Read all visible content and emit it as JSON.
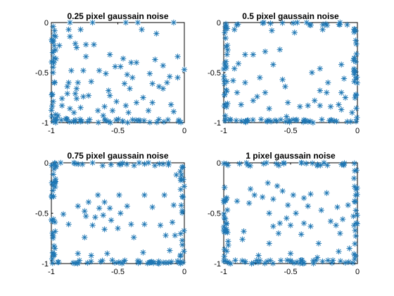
{
  "marker_color": "#1f77b4",
  "chart_data": [
    {
      "type": "scatter",
      "title": "0.25 pixel gaussain noise",
      "xlim": [
        -1,
        0
      ],
      "ylim": [
        -1,
        0
      ],
      "xticks": [
        -1,
        -0.5,
        0
      ],
      "yticks": [
        -1,
        -0.5,
        0
      ],
      "xtick_labels": [
        "-1",
        "-0.5",
        "0"
      ],
      "ytick_labels": [
        "-1",
        "-0.5",
        "0"
      ],
      "grid": false,
      "points": [
        [
          -0.86,
          0.0
        ],
        [
          -0.69,
          0.0
        ],
        [
          -0.44,
          0.0
        ],
        [
          -0.35,
          0.0
        ],
        [
          -0.08,
          0.0
        ],
        [
          -0.87,
          -0.07
        ],
        [
          -0.78,
          -0.07
        ],
        [
          -0.32,
          -0.07
        ],
        [
          -0.21,
          -0.11
        ],
        [
          -0.98,
          -0.13
        ],
        [
          -0.86,
          -0.14
        ],
        [
          -0.82,
          -0.21
        ],
        [
          -0.94,
          -0.23
        ],
        [
          -0.81,
          -0.25
        ],
        [
          -0.74,
          -0.22
        ],
        [
          -0.68,
          -0.22
        ],
        [
          -0.56,
          -0.32
        ],
        [
          -0.46,
          -0.36
        ],
        [
          -0.4,
          -0.4
        ],
        [
          -0.52,
          -0.44
        ],
        [
          -0.74,
          -0.34
        ],
        [
          -0.36,
          -0.4
        ],
        [
          -0.22,
          -0.37
        ],
        [
          -0.98,
          -0.4
        ],
        [
          -0.48,
          -0.44
        ],
        [
          -0.26,
          -0.51
        ],
        [
          -0.16,
          -0.43
        ],
        [
          -0.05,
          -0.34
        ],
        [
          0.0,
          -0.47
        ],
        [
          -0.85,
          -0.48
        ],
        [
          -0.76,
          -0.48
        ],
        [
          -0.64,
          -0.48
        ],
        [
          -0.59,
          -0.51
        ],
        [
          -0.43,
          -0.52
        ],
        [
          -0.39,
          -0.55
        ],
        [
          -0.87,
          -0.6
        ],
        [
          -0.88,
          -0.64
        ],
        [
          -0.8,
          -0.6
        ],
        [
          -0.81,
          -0.66
        ],
        [
          -0.7,
          -0.59
        ],
        [
          -0.45,
          -0.61
        ],
        [
          -0.41,
          -0.66
        ],
        [
          -0.24,
          -0.61
        ],
        [
          -0.19,
          -0.64
        ],
        [
          -0.13,
          -0.6
        ],
        [
          -0.11,
          -0.54
        ],
        [
          -0.16,
          -0.66
        ],
        [
          -0.05,
          -0.55
        ],
        [
          -0.88,
          -0.71
        ],
        [
          -0.82,
          -0.71
        ],
        [
          -0.72,
          -0.73
        ],
        [
          -0.57,
          -0.68
        ],
        [
          -0.31,
          -0.75
        ],
        [
          -0.24,
          -0.8
        ],
        [
          -0.1,
          -0.82
        ],
        [
          -0.92,
          -0.76
        ],
        [
          -0.81,
          -0.76
        ],
        [
          -0.76,
          -0.74
        ],
        [
          -0.56,
          -0.73
        ],
        [
          -0.51,
          -0.79
        ],
        [
          -0.44,
          -0.83
        ],
        [
          -0.36,
          -0.8
        ],
        [
          -0.6,
          -0.84
        ],
        [
          -0.92,
          -0.83
        ],
        [
          -0.86,
          -0.86
        ],
        [
          -0.78,
          -0.85
        ],
        [
          -0.83,
          -0.9
        ],
        [
          -0.65,
          -0.88
        ],
        [
          -0.61,
          -0.93
        ],
        [
          -0.27,
          -0.88
        ],
        [
          -0.42,
          -0.9
        ],
        [
          -0.54,
          -0.88
        ],
        [
          -0.08,
          -0.89
        ],
        [
          -0.95,
          -0.93
        ],
        [
          -0.89,
          -0.96
        ]
      ]
    },
    {
      "type": "scatter",
      "title": "0.5 pixel gaussain noise",
      "xlim": [
        -1,
        0
      ],
      "ylim": [
        -1,
        0
      ],
      "xticks": [
        -1,
        -0.5,
        0
      ],
      "yticks": [
        -1,
        -0.5,
        0
      ],
      "xtick_labels": [
        "-1",
        "-0.5",
        "0"
      ],
      "ytick_labels": [
        "-1",
        "-0.5",
        "0"
      ],
      "grid": false,
      "points": [
        [
          -0.7,
          0.0
        ],
        [
          -0.45,
          0.0
        ],
        [
          -0.38,
          0.0
        ],
        [
          -0.13,
          0.0
        ],
        [
          -0.92,
          -0.07
        ],
        [
          -0.64,
          -0.08
        ],
        [
          -0.26,
          -0.07
        ],
        [
          -0.47,
          -0.1
        ],
        [
          -0.58,
          -0.27
        ],
        [
          -0.84,
          -0.32
        ],
        [
          -0.78,
          -0.32
        ],
        [
          -0.69,
          -0.29
        ],
        [
          -0.89,
          -0.41
        ],
        [
          -0.92,
          -0.46
        ],
        [
          -0.63,
          -0.42
        ],
        [
          -0.34,
          -0.5
        ],
        [
          -0.28,
          -0.46
        ],
        [
          -0.12,
          -0.42
        ],
        [
          -0.93,
          -0.58
        ],
        [
          -0.84,
          -0.6
        ],
        [
          -0.73,
          -0.55
        ],
        [
          -0.56,
          -0.57
        ],
        [
          -0.54,
          -0.64
        ],
        [
          -0.1,
          -0.56
        ],
        [
          -0.22,
          -0.6
        ],
        [
          -0.9,
          -0.7
        ],
        [
          -0.75,
          -0.74
        ],
        [
          -0.69,
          -0.7
        ],
        [
          -0.28,
          -0.68
        ],
        [
          -0.23,
          -0.7
        ],
        [
          -0.12,
          -0.7
        ],
        [
          -0.09,
          -0.75
        ],
        [
          -0.87,
          -0.82
        ],
        [
          -0.78,
          -0.78
        ],
        [
          -0.66,
          -0.86
        ],
        [
          -0.52,
          -0.8
        ],
        [
          -0.43,
          -0.84
        ],
        [
          -0.37,
          -0.83
        ],
        [
          -0.32,
          -0.78
        ],
        [
          -0.28,
          -0.83
        ],
        [
          -0.2,
          -0.84
        ],
        [
          -0.14,
          -0.82
        ],
        [
          -0.12,
          -0.87
        ],
        [
          -0.04,
          -0.9
        ],
        [
          -0.53,
          -0.94
        ]
      ]
    },
    {
      "type": "scatter",
      "title": "0.75 pixel gaussain noise",
      "xlim": [
        -1,
        0
      ],
      "ylim": [
        -1,
        0
      ],
      "xticks": [
        -1,
        -0.5,
        0
      ],
      "yticks": [
        -1,
        -0.5,
        0
      ],
      "xtick_labels": [
        "-1",
        "-0.5",
        "0"
      ],
      "ytick_labels": [
        "-1",
        "-0.5",
        "0"
      ],
      "grid": false,
      "points": [
        [
          -0.93,
          0.0
        ],
        [
          -0.83,
          0.0
        ],
        [
          -0.69,
          0.0
        ],
        [
          -0.34,
          0.0
        ],
        [
          -0.27,
          0.0
        ],
        [
          -0.06,
          -0.12
        ],
        [
          -0.65,
          -0.32
        ],
        [
          -0.49,
          -0.32
        ],
        [
          -0.3,
          -0.32
        ],
        [
          -0.15,
          -0.32
        ],
        [
          -0.72,
          -0.39
        ],
        [
          -0.6,
          -0.39
        ],
        [
          -0.8,
          -0.43
        ],
        [
          -0.75,
          -0.48
        ],
        [
          -0.64,
          -0.45
        ],
        [
          -0.56,
          -0.45
        ],
        [
          -0.43,
          -0.43
        ],
        [
          -0.24,
          -0.44
        ],
        [
          -0.08,
          -0.42
        ],
        [
          -0.91,
          -0.51
        ],
        [
          -0.74,
          -0.53
        ],
        [
          -0.67,
          -0.54
        ],
        [
          -0.61,
          -0.52
        ],
        [
          -0.55,
          -0.57
        ],
        [
          -0.48,
          -0.5
        ],
        [
          -0.87,
          -0.61
        ],
        [
          -0.69,
          -0.62
        ],
        [
          -0.5,
          -0.65
        ],
        [
          -0.4,
          -0.61
        ],
        [
          -0.3,
          -0.61
        ],
        [
          -0.18,
          -0.62
        ],
        [
          -0.09,
          -0.59
        ],
        [
          -0.6,
          -0.66
        ],
        [
          -0.75,
          -0.74
        ],
        [
          -0.38,
          -0.74
        ],
        [
          -0.14,
          -0.72
        ],
        [
          -0.07,
          -0.72
        ],
        [
          -0.8,
          -0.9
        ],
        [
          -0.58,
          -0.9
        ],
        [
          -0.31,
          -0.89
        ],
        [
          -0.11,
          -0.87
        ],
        [
          -0.7,
          -0.92
        ]
      ]
    },
    {
      "type": "scatter",
      "title": "1 pixel gaussain noise",
      "xlim": [
        -1,
        0
      ],
      "ylim": [
        -1,
        0
      ],
      "xticks": [
        -1,
        -0.5,
        0
      ],
      "yticks": [
        -1,
        -0.5,
        0
      ],
      "xtick_labels": [
        "-1",
        "-0.5",
        "0"
      ],
      "ytick_labels": [
        "-1",
        "-0.5",
        "0"
      ],
      "grid": false,
      "points": [
        [
          -0.83,
          0.0
        ],
        [
          -0.68,
          0.0
        ],
        [
          -0.55,
          0.0
        ],
        [
          -0.42,
          0.0
        ],
        [
          -0.25,
          0.0
        ],
        [
          -0.67,
          -0.2
        ],
        [
          -0.6,
          -0.23
        ],
        [
          -0.8,
          -0.26
        ],
        [
          -0.56,
          -0.28
        ],
        [
          -0.48,
          -0.32
        ],
        [
          -0.77,
          -0.32
        ],
        [
          -0.71,
          -0.34
        ],
        [
          -0.63,
          -0.36
        ],
        [
          -0.4,
          -0.35
        ],
        [
          -0.35,
          -0.31
        ],
        [
          -0.23,
          -0.3
        ],
        [
          -0.9,
          -0.38
        ],
        [
          -0.81,
          -0.4
        ],
        [
          -0.52,
          -0.42
        ],
        [
          -0.37,
          -0.43
        ],
        [
          -0.27,
          -0.47
        ],
        [
          -0.15,
          -0.44
        ],
        [
          -0.07,
          -0.42
        ],
        [
          -0.66,
          -0.5
        ],
        [
          -0.53,
          -0.55
        ],
        [
          -0.46,
          -0.5
        ],
        [
          -0.58,
          -0.6
        ],
        [
          -0.63,
          -0.63
        ],
        [
          -0.5,
          -0.62
        ],
        [
          -0.4,
          -0.6
        ],
        [
          -0.35,
          -0.63
        ],
        [
          -0.2,
          -0.58
        ],
        [
          -0.16,
          -0.62
        ],
        [
          -0.11,
          -0.56
        ],
        [
          -0.03,
          -0.53
        ],
        [
          -0.85,
          -0.68
        ],
        [
          -0.59,
          -0.7
        ],
        [
          -0.42,
          -0.71
        ],
        [
          -0.13,
          -0.7
        ],
        [
          -0.86,
          -0.76
        ],
        [
          -0.66,
          -0.8
        ],
        [
          -0.29,
          -0.8
        ],
        [
          -0.5,
          -0.9
        ],
        [
          -0.14,
          -0.88
        ],
        [
          -0.06,
          -0.85
        ],
        [
          -0.74,
          -0.92
        ],
        [
          -0.3,
          -0.94
        ]
      ]
    }
  ]
}
